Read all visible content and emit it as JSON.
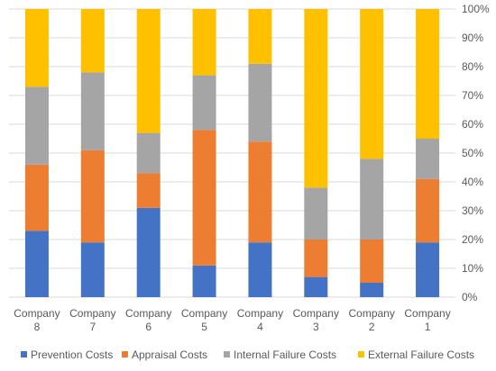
{
  "chart_data": {
    "type": "bar",
    "stacked": true,
    "categories": [
      [
        "Company",
        "8"
      ],
      [
        "Company",
        "7"
      ],
      [
        "Company",
        "6"
      ],
      [
        "Company",
        "5"
      ],
      [
        "Company",
        "4"
      ],
      [
        "Company",
        "3"
      ],
      [
        "Company",
        "2"
      ],
      [
        "Company",
        "1"
      ]
    ],
    "series": [
      {
        "name": "Prevention Costs",
        "color": "#4472C4",
        "values": [
          23,
          19,
          31,
          11,
          19,
          7,
          5,
          19
        ]
      },
      {
        "name": "Appraisal Costs",
        "color": "#ED7D31",
        "values": [
          23,
          32,
          12,
          47,
          35,
          13,
          15,
          22
        ]
      },
      {
        "name": "Internal Failure Costs",
        "color": "#A5A5A5",
        "values": [
          27,
          27,
          14,
          19,
          27,
          18,
          28,
          14
        ]
      },
      {
        "name": "External Failure Costs",
        "color": "#FFC000",
        "values": [
          27,
          22,
          43,
          23,
          19,
          62,
          52,
          45
        ]
      }
    ],
    "y_ticks": [
      "0%",
      "10%",
      "20%",
      "30%",
      "40%",
      "50%",
      "60%",
      "70%",
      "80%",
      "90%",
      "100%"
    ],
    "ylim": [
      0,
      100
    ],
    "y_axis_position": "right",
    "grid": true,
    "legend_position": "bottom"
  }
}
